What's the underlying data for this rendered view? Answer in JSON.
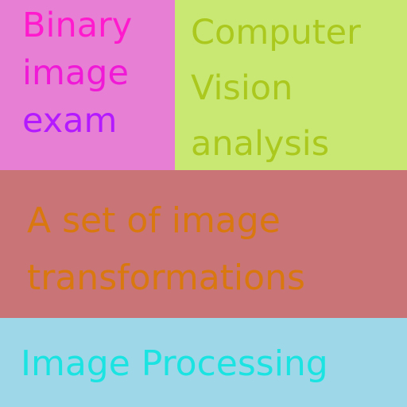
{
  "tiles": {
    "binary": {
      "bg": "#e77fd5",
      "lines": [
        "Binary",
        "image",
        "exam"
      ],
      "colors": [
        "#ff1acd",
        "#f01ad6",
        "#b41aff"
      ]
    },
    "vision": {
      "bg": "#c8e873",
      "color": "#aac81e",
      "lines": [
        "Computer",
        "Vision",
        "analysis"
      ]
    },
    "transform": {
      "bg": "#c97476",
      "color": "#d9780f",
      "lines": [
        "A set of image",
        "transformations"
      ]
    },
    "processing": {
      "bg": "#9ed8e8",
      "color": "#1ae3e1",
      "lines": [
        "Image Processing"
      ]
    }
  }
}
